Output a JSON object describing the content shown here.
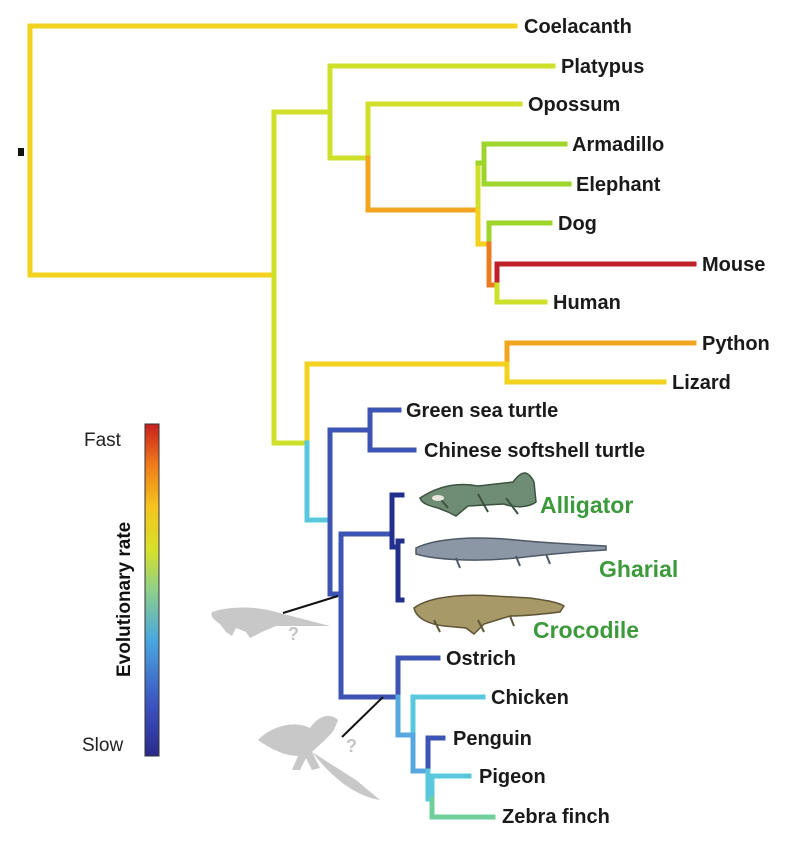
{
  "tree": {
    "taxa": [
      {
        "id": "coelacanth",
        "label": "Coelacanth"
      },
      {
        "id": "platypus",
        "label": "Platypus"
      },
      {
        "id": "opossum",
        "label": "Opossum"
      },
      {
        "id": "armadillo",
        "label": "Armadillo"
      },
      {
        "id": "elephant",
        "label": "Elephant"
      },
      {
        "id": "dog",
        "label": "Dog"
      },
      {
        "id": "mouse",
        "label": "Mouse"
      },
      {
        "id": "human",
        "label": "Human"
      },
      {
        "id": "python",
        "label": "Python"
      },
      {
        "id": "lizard",
        "label": "Lizard"
      },
      {
        "id": "green-sea-turtle",
        "label": "Green sea turtle"
      },
      {
        "id": "chinese-softshell-turtle",
        "label": "Chinese softshell turtle"
      },
      {
        "id": "alligator",
        "label": "Alligator",
        "highlight": true
      },
      {
        "id": "gharial",
        "label": "Gharial",
        "highlight": true
      },
      {
        "id": "crocodile",
        "label": "Crocodile",
        "highlight": true
      },
      {
        "id": "ostrich",
        "label": "Ostrich"
      },
      {
        "id": "chicken",
        "label": "Chicken"
      },
      {
        "id": "penguin",
        "label": "Penguin"
      },
      {
        "id": "pigeon",
        "label": "Pigeon"
      },
      {
        "id": "zebra-finch",
        "label": "Zebra finch"
      }
    ],
    "highlight_color": "#3c9a3c",
    "branch_colors": {
      "fast": "#c0202a",
      "fast_mid": "#ea7b1e",
      "mid_fast": "#f2a51e",
      "mid": "#f2d21e",
      "mid_slow": "#cfe02a",
      "moderate": "#9fd52a",
      "slow_mid": "#6fcf9a",
      "slow_light": "#5ac8dc",
      "slow_blue": "#58a8e0",
      "slow": "#3e54b4",
      "slowest": "#232f8c"
    },
    "silhouette_color": "#c8c8c8",
    "question_mark": "?"
  },
  "legend": {
    "title": "Evolutionary rate",
    "fast_label": "Fast",
    "slow_label": "Slow",
    "gradient": [
      "#2a2a8a",
      "#3c50c0",
      "#4aa8e0",
      "#8fd08a",
      "#d7e02a",
      "#f5c51e",
      "#ee7a1a",
      "#c81e1e"
    ]
  }
}
